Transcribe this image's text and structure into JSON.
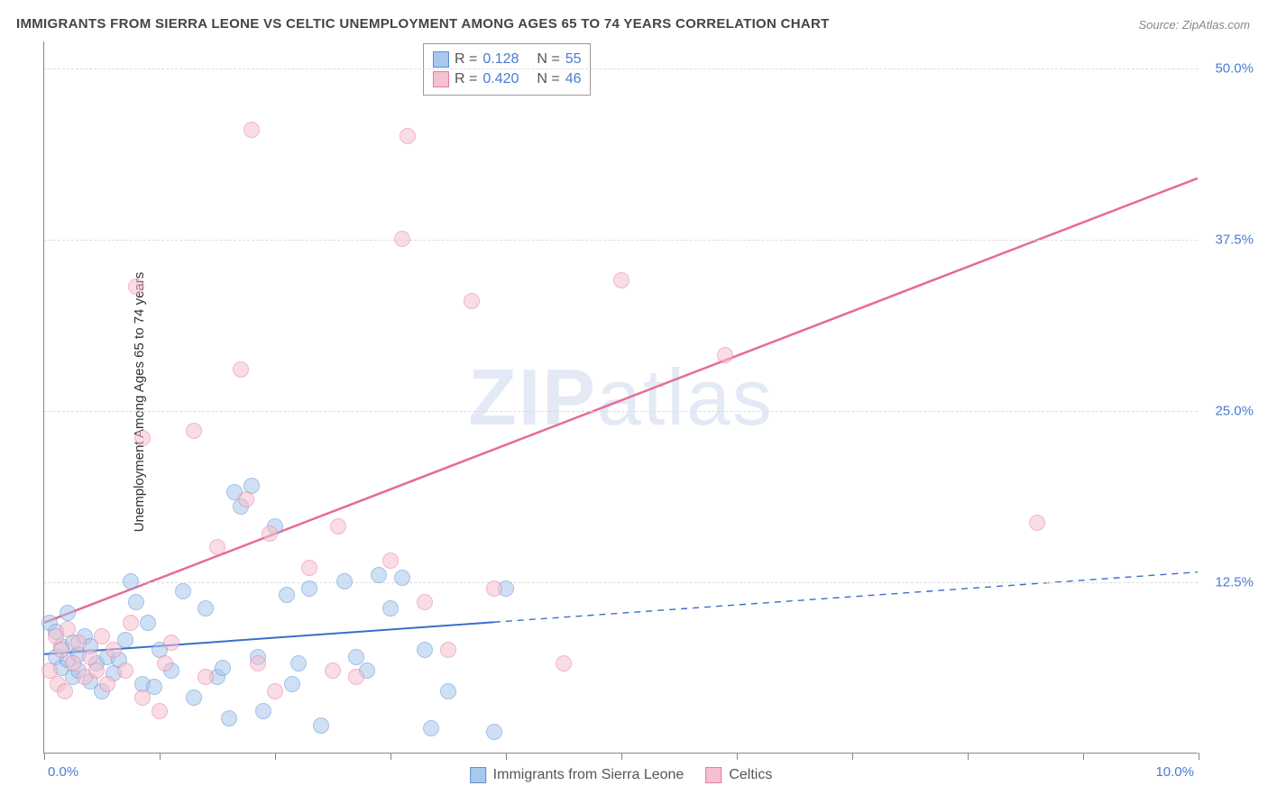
{
  "title": "IMMIGRANTS FROM SIERRA LEONE VS CELTIC UNEMPLOYMENT AMONG AGES 65 TO 74 YEARS CORRELATION CHART",
  "source_prefix": "Source: ",
  "source_name": "ZipAtlas.com",
  "y_axis_label": "Unemployment Among Ages 65 to 74 years",
  "watermark_bold": "ZIP",
  "watermark_rest": "atlas",
  "chart": {
    "type": "scatter",
    "xlim": [
      0,
      10
    ],
    "ylim": [
      0,
      52
    ],
    "x_ticks": [
      0,
      1,
      2,
      3,
      4,
      5,
      6,
      7,
      8,
      9,
      10
    ],
    "x_tick_labels": {
      "0": "0.0%",
      "10": "10.0%"
    },
    "y_gridlines": [
      12.5,
      25.0,
      37.5,
      50.0
    ],
    "y_tick_labels": [
      "12.5%",
      "25.0%",
      "37.5%",
      "50.0%"
    ],
    "background_color": "#ffffff",
    "grid_color": "#dddddd",
    "axis_color": "#888888",
    "tick_label_color": "#4a7bd0",
    "point_radius": 9,
    "point_opacity": 0.55,
    "series": [
      {
        "name": "Immigrants from Sierra Leone",
        "fill": "#a8c8ec",
        "stroke": "#5b8fd6",
        "trend": {
          "x1": 0,
          "y1": 7.2,
          "x2": 10,
          "y2": 13.2,
          "solid_until_x": 3.9,
          "color": "#3b6fc9",
          "width": 2
        },
        "points": [
          [
            0.05,
            9.5
          ],
          [
            0.1,
            8.8
          ],
          [
            0.1,
            7.0
          ],
          [
            0.15,
            6.2
          ],
          [
            0.15,
            7.8
          ],
          [
            0.2,
            10.2
          ],
          [
            0.2,
            6.8
          ],
          [
            0.25,
            5.5
          ],
          [
            0.25,
            8.0
          ],
          [
            0.3,
            7.2
          ],
          [
            0.3,
            6.0
          ],
          [
            0.35,
            8.5
          ],
          [
            0.4,
            5.2
          ],
          [
            0.4,
            7.8
          ],
          [
            0.45,
            6.5
          ],
          [
            0.5,
            4.5
          ],
          [
            0.55,
            7.0
          ],
          [
            0.6,
            5.8
          ],
          [
            0.65,
            6.8
          ],
          [
            0.7,
            8.2
          ],
          [
            0.75,
            12.5
          ],
          [
            0.8,
            11.0
          ],
          [
            0.85,
            5.0
          ],
          [
            0.9,
            9.5
          ],
          [
            0.95,
            4.8
          ],
          [
            1.0,
            7.5
          ],
          [
            1.1,
            6.0
          ],
          [
            1.2,
            11.8
          ],
          [
            1.3,
            4.0
          ],
          [
            1.4,
            10.5
          ],
          [
            1.5,
            5.5
          ],
          [
            1.55,
            6.2
          ],
          [
            1.6,
            2.5
          ],
          [
            1.65,
            19.0
          ],
          [
            1.7,
            18.0
          ],
          [
            1.8,
            19.5
          ],
          [
            1.85,
            7.0
          ],
          [
            1.9,
            3.0
          ],
          [
            2.0,
            16.5
          ],
          [
            2.1,
            11.5
          ],
          [
            2.15,
            5.0
          ],
          [
            2.2,
            6.5
          ],
          [
            2.3,
            12.0
          ],
          [
            2.4,
            2.0
          ],
          [
            2.6,
            12.5
          ],
          [
            2.7,
            7.0
          ],
          [
            2.8,
            6.0
          ],
          [
            2.9,
            13.0
          ],
          [
            3.0,
            10.5
          ],
          [
            3.1,
            12.8
          ],
          [
            3.3,
            7.5
          ],
          [
            3.35,
            1.8
          ],
          [
            3.5,
            4.5
          ],
          [
            3.9,
            1.5
          ],
          [
            4.0,
            12.0
          ]
        ]
      },
      {
        "name": "Celtics",
        "fill": "#f5c0cf",
        "stroke": "#e87ba0",
        "trend": {
          "x1": 0,
          "y1": 9.5,
          "x2": 10,
          "y2": 42.0,
          "solid_until_x": 10,
          "color": "#e86a94",
          "width": 2.5
        },
        "points": [
          [
            0.05,
            6.0
          ],
          [
            0.1,
            8.5
          ],
          [
            0.12,
            5.0
          ],
          [
            0.15,
            7.5
          ],
          [
            0.18,
            4.5
          ],
          [
            0.2,
            9.0
          ],
          [
            0.25,
            6.5
          ],
          [
            0.3,
            8.0
          ],
          [
            0.35,
            5.5
          ],
          [
            0.4,
            7.0
          ],
          [
            0.45,
            6.0
          ],
          [
            0.5,
            8.5
          ],
          [
            0.55,
            5.0
          ],
          [
            0.6,
            7.5
          ],
          [
            0.7,
            6.0
          ],
          [
            0.75,
            9.5
          ],
          [
            0.8,
            34.0
          ],
          [
            0.85,
            4.0
          ],
          [
            0.85,
            23.0
          ],
          [
            1.0,
            3.0
          ],
          [
            1.05,
            6.5
          ],
          [
            1.1,
            8.0
          ],
          [
            1.3,
            23.5
          ],
          [
            1.4,
            5.5
          ],
          [
            1.5,
            15.0
          ],
          [
            1.7,
            28.0
          ],
          [
            1.75,
            18.5
          ],
          [
            1.8,
            45.5
          ],
          [
            1.85,
            6.5
          ],
          [
            1.95,
            16.0
          ],
          [
            2.0,
            4.5
          ],
          [
            2.3,
            13.5
          ],
          [
            2.5,
            6.0
          ],
          [
            2.55,
            16.5
          ],
          [
            2.7,
            5.5
          ],
          [
            3.0,
            14.0
          ],
          [
            3.1,
            37.5
          ],
          [
            3.15,
            45.0
          ],
          [
            3.3,
            11.0
          ],
          [
            3.5,
            7.5
          ],
          [
            3.7,
            33.0
          ],
          [
            3.9,
            12.0
          ],
          [
            4.5,
            6.5
          ],
          [
            5.0,
            34.5
          ],
          [
            5.9,
            29.0
          ],
          [
            8.6,
            16.8
          ]
        ]
      }
    ]
  },
  "legend_top": {
    "rows": [
      {
        "swatch_fill": "#a8c8ec",
        "swatch_stroke": "#5b8fd6",
        "r_label": "R =",
        "r_value": "0.128",
        "n_label": "N =",
        "n_value": "55"
      },
      {
        "swatch_fill": "#f5c0cf",
        "swatch_stroke": "#e87ba0",
        "r_label": "R =",
        "r_value": "0.420",
        "n_label": "N =",
        "n_value": "46"
      }
    ]
  },
  "legend_bottom": {
    "items": [
      {
        "swatch_fill": "#a8c8ec",
        "swatch_stroke": "#5b8fd6",
        "label": "Immigrants from Sierra Leone"
      },
      {
        "swatch_fill": "#f5c0cf",
        "swatch_stroke": "#e87ba0",
        "label": "Celtics"
      }
    ]
  }
}
